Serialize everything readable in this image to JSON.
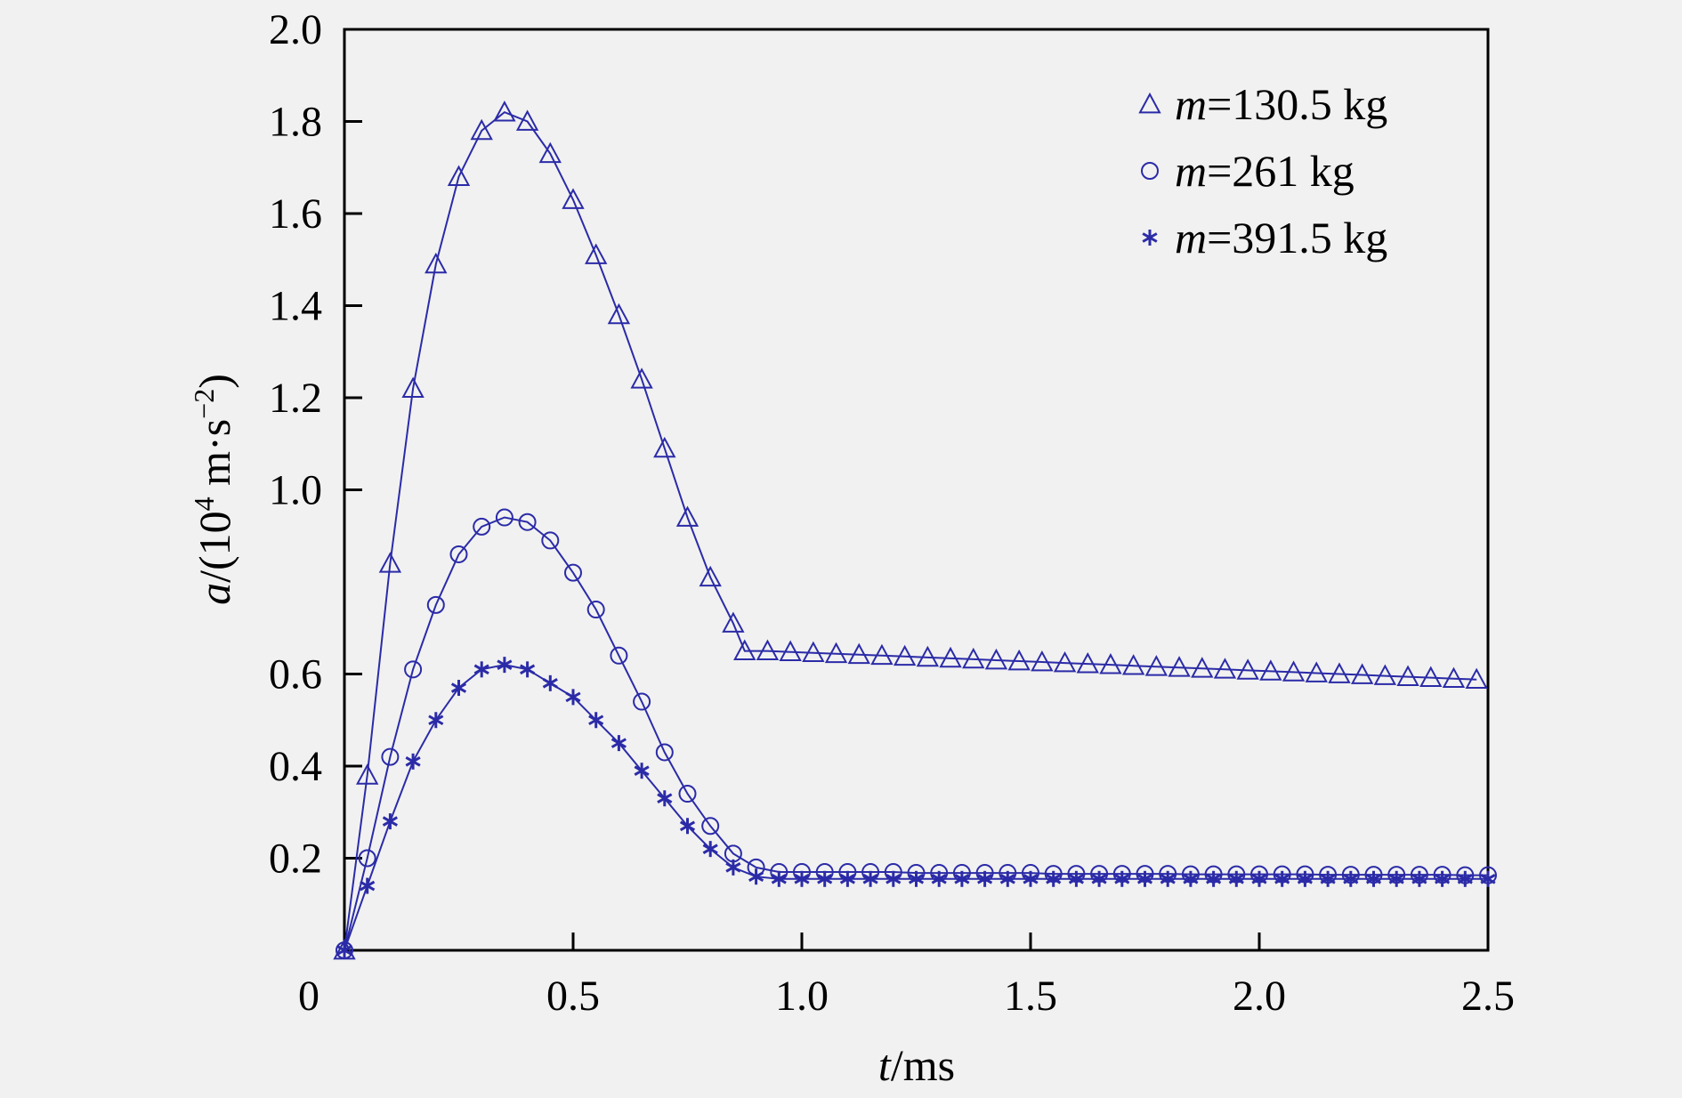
{
  "colors": {
    "series": "#2b2ba8",
    "axis": "#000000",
    "background": "#f1f1f1"
  },
  "chart_data": {
    "type": "line",
    "title": "",
    "xlabel": {
      "var": "t",
      "rest": "/ms"
    },
    "ylabel": {
      "var": "a",
      "rest": "/(10",
      "sup1": "4",
      "mid": " m·s",
      "sup2": "−2",
      "end": ")"
    },
    "xlim": [
      0,
      2.5
    ],
    "ylim": [
      0,
      2.0
    ],
    "xticks": [
      0,
      0.5,
      1.0,
      1.5,
      2.0,
      2.5
    ],
    "xtick_labels": [
      "0",
      "0.5",
      "1.0",
      "1.5",
      "2.0",
      "2.5"
    ],
    "yticks": [
      0.2,
      0.4,
      0.6,
      1.0,
      1.2,
      1.4,
      1.6,
      1.8,
      2.0
    ],
    "ytick_labels": [
      "0.2",
      "0.4",
      "0.6",
      "1.0",
      "1.2",
      "1.4",
      "1.6",
      "1.8",
      "2.0"
    ],
    "grid": false,
    "legend_position": "top-right",
    "series": [
      {
        "name": "=130.5 kg",
        "name_var": "m",
        "marker": "triangle",
        "x": [
          0,
          0.05,
          0.1,
          0.15,
          0.2,
          0.25,
          0.3,
          0.35,
          0.4,
          0.45,
          0.5,
          0.55,
          0.6,
          0.65,
          0.7,
          0.75,
          0.8,
          0.85,
          0.875,
          0.925,
          0.975,
          1.025,
          1.075,
          1.125,
          1.175,
          1.225,
          1.275,
          1.325,
          1.375,
          1.425,
          1.475,
          1.525,
          1.575,
          1.625,
          1.675,
          1.725,
          1.775,
          1.825,
          1.875,
          1.925,
          1.975,
          2.025,
          2.075,
          2.125,
          2.175,
          2.225,
          2.275,
          2.325,
          2.375,
          2.425,
          2.475
        ],
        "y": [
          0.0,
          0.38,
          0.84,
          1.22,
          1.49,
          1.68,
          1.78,
          1.82,
          1.8,
          1.73,
          1.63,
          1.51,
          1.38,
          1.24,
          1.09,
          0.94,
          0.81,
          0.71,
          0.65,
          0.65,
          0.648,
          0.646,
          0.644,
          0.642,
          0.64,
          0.638,
          0.636,
          0.634,
          0.632,
          0.63,
          0.628,
          0.626,
          0.624,
          0.622,
          0.62,
          0.618,
          0.616,
          0.614,
          0.612,
          0.61,
          0.608,
          0.606,
          0.604,
          0.602,
          0.6,
          0.598,
          0.596,
          0.594,
          0.592,
          0.59,
          0.588
        ]
      },
      {
        "name": "=261 kg",
        "name_var": "m",
        "marker": "circle",
        "x": [
          0,
          0.05,
          0.1,
          0.15,
          0.2,
          0.25,
          0.3,
          0.35,
          0.4,
          0.45,
          0.5,
          0.55,
          0.6,
          0.65,
          0.7,
          0.75,
          0.8,
          0.85,
          0.9,
          0.95,
          1.0,
          1.05,
          1.1,
          1.15,
          1.2,
          1.25,
          1.3,
          1.35,
          1.4,
          1.45,
          1.5,
          1.55,
          1.6,
          1.65,
          1.7,
          1.75,
          1.8,
          1.85,
          1.9,
          1.95,
          2.0,
          2.05,
          2.1,
          2.15,
          2.2,
          2.25,
          2.3,
          2.35,
          2.4,
          2.45,
          2.5
        ],
        "y": [
          0.0,
          0.2,
          0.42,
          0.61,
          0.75,
          0.86,
          0.92,
          0.94,
          0.93,
          0.89,
          0.82,
          0.74,
          0.64,
          0.54,
          0.43,
          0.34,
          0.27,
          0.21,
          0.18,
          0.17,
          0.17,
          0.17,
          0.17,
          0.17,
          0.17,
          0.168,
          0.168,
          0.168,
          0.168,
          0.168,
          0.168,
          0.166,
          0.166,
          0.166,
          0.166,
          0.166,
          0.166,
          0.165,
          0.165,
          0.165,
          0.165,
          0.165,
          0.165,
          0.164,
          0.164,
          0.164,
          0.164,
          0.164,
          0.164,
          0.163,
          0.163
        ]
      },
      {
        "name": "=391.5 kg",
        "name_var": "m",
        "marker": "asterisk",
        "x": [
          0,
          0.05,
          0.1,
          0.15,
          0.2,
          0.25,
          0.3,
          0.35,
          0.4,
          0.45,
          0.5,
          0.55,
          0.6,
          0.65,
          0.7,
          0.75,
          0.8,
          0.85,
          0.9,
          0.95,
          1.0,
          1.05,
          1.1,
          1.15,
          1.2,
          1.25,
          1.3,
          1.35,
          1.4,
          1.45,
          1.5,
          1.55,
          1.6,
          1.65,
          1.7,
          1.75,
          1.8,
          1.85,
          1.9,
          1.95,
          2.0,
          2.05,
          2.1,
          2.15,
          2.2,
          2.25,
          2.3,
          2.35,
          2.4,
          2.45,
          2.5
        ],
        "y": [
          0.0,
          0.14,
          0.28,
          0.41,
          0.5,
          0.57,
          0.61,
          0.62,
          0.61,
          0.58,
          0.55,
          0.5,
          0.45,
          0.39,
          0.33,
          0.27,
          0.22,
          0.18,
          0.16,
          0.155,
          0.155,
          0.155,
          0.155,
          0.155,
          0.155,
          0.155,
          0.155,
          0.155,
          0.155,
          0.155,
          0.155,
          0.155,
          0.155,
          0.155,
          0.155,
          0.155,
          0.155,
          0.155,
          0.155,
          0.155,
          0.155,
          0.155,
          0.155,
          0.155,
          0.155,
          0.155,
          0.155,
          0.155,
          0.155,
          0.155,
          0.155
        ]
      }
    ]
  }
}
